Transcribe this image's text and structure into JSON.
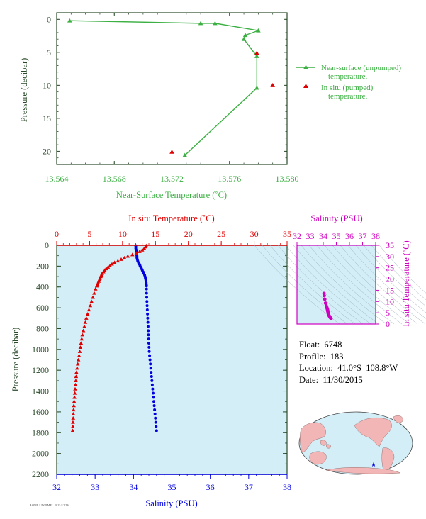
{
  "colors": {
    "near_surface": "#3cb043",
    "in_situ": "#e00000",
    "salinity": "#0000e0",
    "inset": "#d000c0",
    "axis_dark": "#2a4a2a",
    "panel_bg": "#d4eef8",
    "land": "#f2b6b6",
    "ocean": "#d4eef8"
  },
  "float_info": {
    "float": "Float:  6748",
    "profile": "Profile:  183",
    "location": "Location:  41.0°S  108.8°W",
    "date": "Date:  11/30/2015"
  },
  "footer_text": "AOML/UW/PMEL 2015/12/16",
  "chart_data": [
    {
      "type": "line",
      "id": "near-surface",
      "xlabel": "Near-Surface Temperature (˚C)",
      "ylabel": "Pressure (decibar)",
      "xlim": [
        13.564,
        13.58
      ],
      "ylim": [
        22,
        -1
      ],
      "xticks": [
        13.564,
        13.568,
        13.572,
        13.576,
        13.58
      ],
      "xtick_labels": [
        "13.564",
        "13.568",
        "13.572",
        "13.576",
        "13.580"
      ],
      "yticks": [
        0,
        5,
        10,
        15,
        20
      ],
      "series": [
        {
          "name": "Near-surface (unpumped) temperature.",
          "points": [
            [
              13.5649,
              0.2
            ],
            [
              13.574,
              0.6
            ],
            [
              13.575,
              0.6
            ],
            [
              13.578,
              1.7
            ],
            [
              13.5771,
              2.4
            ],
            [
              13.577,
              3.0
            ],
            [
              13.5779,
              5.6
            ],
            [
              13.5779,
              10.4
            ],
            [
              13.5729,
              20.6
            ]
          ]
        },
        {
          "name": "In situ (pumped) temperature.",
          "points": [
            [
              13.5779,
              5.1
            ],
            [
              13.579,
              10.0
            ],
            [
              13.572,
              20.1
            ]
          ]
        }
      ],
      "legend_lines": [
        [
          "Near-surface (unpumped)",
          "temperature."
        ],
        [
          "In situ (pumped)",
          "temperature."
        ]
      ]
    },
    {
      "type": "scatter",
      "id": "profile",
      "ylabel": "Pressure (decibar)",
      "ylim": [
        0,
        2200
      ],
      "yticks": [
        0,
        200,
        400,
        600,
        800,
        1000,
        1200,
        1400,
        1600,
        1800,
        2000,
        2200
      ],
      "top_axis": {
        "label": "In situ Temperature (˚C)",
        "lim": [
          0,
          35
        ],
        "ticks": [
          0,
          5,
          10,
          15,
          20,
          25,
          30,
          35
        ]
      },
      "bottom_axis": {
        "label": "Salinity (PSU)",
        "lim": [
          32,
          38
        ],
        "ticks": [
          32,
          33,
          34,
          35,
          36,
          37,
          38
        ]
      },
      "temperature": {
        "pressure": [
          4,
          15,
          30,
          45,
          60,
          75,
          90,
          105,
          120,
          135,
          150,
          165,
          180,
          195,
          210,
          225,
          240,
          255,
          270,
          285,
          300,
          315,
          330,
          345,
          360,
          375,
          390,
          420,
          460,
          500,
          540,
          580,
          620,
          660,
          700,
          740,
          780,
          820,
          860,
          900,
          940,
          980,
          1020,
          1060,
          1100,
          1140,
          1180,
          1220,
          1260,
          1300,
          1340,
          1380,
          1420,
          1460,
          1500,
          1540,
          1580,
          1620,
          1660,
          1700,
          1740,
          1780
        ],
        "values": [
          13.6,
          13.5,
          13.3,
          13.0,
          12.6,
          12.1,
          11.5,
          10.8,
          10.3,
          9.8,
          9.3,
          8.8,
          8.4,
          8.1,
          7.8,
          7.5,
          7.3,
          7.1,
          6.9,
          6.8,
          6.7,
          6.6,
          6.5,
          6.4,
          6.3,
          6.2,
          6.1,
          5.9,
          5.7,
          5.5,
          5.3,
          5.1,
          4.9,
          4.7,
          4.5,
          4.35,
          4.2,
          4.05,
          3.9,
          3.8,
          3.7,
          3.6,
          3.5,
          3.4,
          3.3,
          3.2,
          3.1,
          3.0,
          2.95,
          2.9,
          2.85,
          2.8,
          2.75,
          2.7,
          2.65,
          2.6,
          2.57,
          2.54,
          2.5,
          2.47,
          2.45,
          2.42
        ]
      },
      "salinity": {
        "pressure": [
          4,
          15,
          30,
          45,
          60,
          75,
          90,
          105,
          120,
          135,
          150,
          165,
          180,
          195,
          210,
          225,
          240,
          255,
          270,
          285,
          300,
          315,
          330,
          345,
          360,
          375,
          390,
          420,
          460,
          500,
          540,
          580,
          620,
          660,
          700,
          740,
          780,
          820,
          860,
          900,
          940,
          980,
          1020,
          1060,
          1100,
          1140,
          1180,
          1220,
          1260,
          1300,
          1340,
          1380,
          1420,
          1460,
          1500,
          1540,
          1580,
          1620,
          1660,
          1700,
          1740,
          1780
        ],
        "values": [
          34.06,
          34.06,
          34.06,
          34.07,
          34.07,
          34.08,
          34.08,
          34.09,
          34.09,
          34.1,
          34.11,
          34.13,
          34.15,
          34.17,
          34.19,
          34.21,
          34.23,
          34.25,
          34.27,
          34.29,
          34.3,
          34.31,
          34.32,
          34.325,
          34.33,
          34.335,
          34.34,
          34.34,
          34.34,
          34.345,
          34.35,
          34.355,
          34.36,
          34.365,
          34.37,
          34.375,
          34.38,
          34.385,
          34.39,
          34.395,
          34.4,
          34.405,
          34.41,
          34.42,
          34.43,
          34.44,
          34.45,
          34.46,
          34.47,
          34.48,
          34.49,
          34.5,
          34.51,
          34.52,
          34.53,
          34.54,
          34.55,
          34.56,
          34.57,
          34.58,
          34.59,
          34.6
        ]
      }
    },
    {
      "type": "scatter",
      "id": "ts-diagram",
      "top_axis": {
        "label": "Salinity (PSU)",
        "lim": [
          32,
          38
        ],
        "ticks": [
          32,
          33,
          34,
          35,
          36,
          37,
          38
        ]
      },
      "right_axis": {
        "label": "In situ Temperature (˚C)",
        "lim": [
          0,
          35
        ],
        "ticks": [
          0,
          5,
          10,
          15,
          20,
          25,
          30,
          35
        ]
      },
      "salinity": [
        34.06,
        34.08,
        34.12,
        34.17,
        34.23,
        34.28,
        34.3,
        34.32,
        34.33,
        34.34,
        34.35,
        34.37,
        34.39,
        34.41,
        34.44,
        34.47,
        34.5,
        34.53,
        34.56,
        34.6
      ],
      "temperature": [
        13.6,
        12.6,
        11.0,
        9.3,
        8.1,
        7.3,
        6.9,
        6.6,
        6.3,
        6.0,
        5.6,
        5.1,
        4.6,
        4.2,
        3.8,
        3.5,
        3.2,
        2.9,
        2.7,
        2.45
      ]
    }
  ],
  "map": {
    "float_marker": "star"
  }
}
